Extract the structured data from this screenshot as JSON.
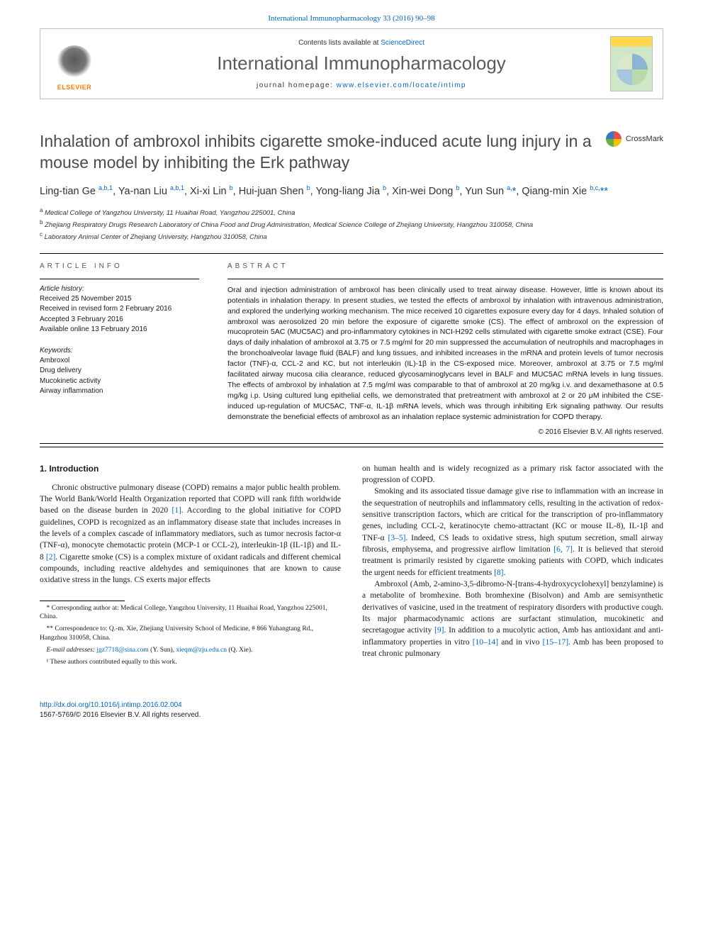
{
  "journal": {
    "topLink": "International Immunopharmacology 33 (2016) 90–98",
    "contentsPrefix": "Contents lists available at ",
    "contentsLink": "ScienceDirect",
    "title": "International Immunopharmacology",
    "homepagePrefix": "journal homepage: ",
    "homepageUrl": "www.elsevier.com/locate/intimp",
    "elsevierWord": "ELSEVIER",
    "coverTopText": "International Immunopharmacology"
  },
  "crossmark": "CrossMark",
  "article": {
    "title": "Inhalation of ambroxol inhibits cigarette smoke-induced acute lung injury in a mouse model by inhibiting the Erk pathway",
    "authorsHtml": "Ling-tian Ge <sup><a>a,b,1</a></sup>, Ya-nan Liu <sup><a>a,b,1</a></sup>, Xi-xi Lin <sup><a>b</a></sup>, Hui-juan Shen <sup><a>b</a></sup>, Yong-liang Jia <sup><a>b</a></sup>, Xin-wei Dong <sup><a>b</a></sup>, Yun Sun <sup><a>a,</a></sup><a>*</a>, Qiang-min Xie <sup><a>b,c,</a></sup><a>**</a>",
    "affiliations": [
      "Medical College of Yangzhou University, 11 Huaihai Road, Yangzhou 225001, China",
      "Zhejiang Respiratory Drugs Research Laboratory of China Food and Drug Administration, Medical Science College of Zhejiang University, Hangzhou 310058, China",
      "Laboratory Animal Center of Zhejiang University, Hangzhou 310058, China"
    ],
    "affilSup": [
      "a",
      "b",
      "c"
    ]
  },
  "info": {
    "headArticleInfo": "article info",
    "headAbstract": "abstract",
    "historyLabel": "Article history:",
    "history": [
      "Received 25 November 2015",
      "Received in revised form 2 February 2016",
      "Accepted 3 February 2016",
      "Available online 13 February 2016"
    ],
    "keywordsLabel": "Keywords:",
    "keywords": [
      "Ambroxol",
      "Drug delivery",
      "Mucokinetic activity",
      "Airway inflammation"
    ],
    "abstract": "Oral and injection administration of ambroxol has been clinically used to treat airway disease. However, little is known about its potentials in inhalation therapy. In present studies, we tested the effects of ambroxol by inhalation with intravenous administration, and explored the underlying working mechanism. The mice received 10 cigarettes exposure every day for 4 days. Inhaled solution of ambroxol was aerosolized 20 min before the exposure of cigarette smoke (CS). The effect of ambroxol on the expression of mucoprotein 5AC (MUC5AC) and pro-inflammatory cytokines in NCI-H292 cells stimulated with cigarette smoke extract (CSE). Four days of daily inhalation of ambroxol at 3.75 or 7.5 mg/ml for 20 min suppressed the accumulation of neutrophils and macrophages in the bronchoalveolar lavage fluid (BALF) and lung tissues, and inhibited increases in the mRNA and protein levels of tumor necrosis factor (TNF)-α, CCL-2 and KC, but not interleukin (IL)-1β in the CS-exposed mice. Moreover, ambroxol at 3.75 or 7.5 mg/ml facilitated airway mucosa cilia clearance, reduced glycosaminoglycans level in BALF and MUC5AC mRNA levels in lung tissues. The effects of ambroxol by inhalation at 7.5 mg/ml was comparable to that of ambroxol at 20 mg/kg i.v. and dexamethasone at 0.5 mg/kg i.p. Using cultured lung epithelial cells, we demonstrated that pretreatment with ambroxol at 2 or 20 μM inhibited the CSE-induced up-regulation of MUC5AC, TNF-α, IL-1β mRNA levels, which was through inhibiting Erk signaling pathway. Our results demonstrate the beneficial effects of ambroxol as an inhalation replace systemic administration for COPD therapy.",
    "copyright": "© 2016 Elsevier B.V. All rights reserved."
  },
  "body": {
    "h1": "1. Introduction",
    "p1a": "Chronic obstructive pulmonary disease (COPD) remains a major public health problem. The World Bank/World Health Organization reported that COPD will rank fifth worldwide based on the disease burden in 2020 ",
    "r1": "[1]",
    "p1b": ". According to the global initiative for COPD guidelines, COPD is recognized as an inflammatory disease state that includes increases in the levels of a complex cascade of inflammatory mediators, such as tumor necrosis factor-α (TNF-α), monocyte chemotactic protein (MCP-1 or CCL-2), interleukin-1β (IL-1β) and IL-8 ",
    "r2": "[2]",
    "p1c": ". Cigarette smoke (CS) is a complex mixture of oxidant radicals and different chemical compounds, including reactive aldehydes and semiquinones that are known to cause oxidative stress in the lungs. CS exerts major effects",
    "p2": "on human health and is widely recognized as a primary risk factor associated with the progression of COPD.",
    "p3a": "Smoking and its associated tissue damage give rise to inflammation with an increase in the sequestration of neutrophils and inflammatory cells, resulting in the activation of redox-sensitive transcription factors, which are critical for the transcription of pro-inflammatory genes, including CCL-2, keratinocyte chemo-attractant (KC or mouse IL-8), IL-1β and TNF-α ",
    "r35": "[3–5]",
    "p3b": ". Indeed, CS leads to oxidative stress, high sputum secretion, small airway fibrosis, emphysema, and progressive airflow limitation ",
    "r67": "[6, 7]",
    "p3c": ". It is believed that steroid treatment is primarily resisted by cigarette smoking patients with COPD, which indicates the urgent needs for efficient treatments ",
    "r8": "[8]",
    "p3d": ".",
    "p4a": "Ambroxol (Amb, 2-amino-3,5-dibromo-N-[trans-4-hydroxycyclohexyl] benzylamine) is a metabolite of bromhexine. Both bromhexine (Bisolvon) and Amb are semisynthetic derivatives of vasicine, used in the treatment of respiratory disorders with productive cough. Its major pharmacodynamic actions are surfactant stimulation, mucokinetic and secretagogue activity ",
    "r9": "[9]",
    "p4b": ". In addition to a mucolytic action, Amb has antioxidant and anti-inflammatory properties in vitro ",
    "r1014": "[10–14]",
    "p4c": " and in vivo ",
    "r1517": "[15–17]",
    "p4d": ". Amb has been proposed to treat chronic pulmonary"
  },
  "footnotes": {
    "f1": "* Corresponding author at: Medical College, Yangzhou University, 11 Huaihai Road, Yangzhou 225001, China.",
    "f2": "** Correspondence to: Q.-m. Xie, Zhejiang University School of Medicine, # 866 Yuhangtang Rd., Hangzhou 310058, China.",
    "emLabel": "E-mail addresses: ",
    "em1": "jgz7718@sina.com",
    "em1who": " (Y. Sun), ",
    "em2": "xieqm@zju.edu.cn",
    "em2who": " (Q. Xie).",
    "eq": "¹ These authors contributed equally to this work."
  },
  "doi": {
    "url": "http://dx.doi.org/10.1016/j.intimp.2016.02.004",
    "issn": "1567-5769/© 2016 Elsevier B.V. All rights reserved."
  },
  "colors": {
    "link": "#0066cc",
    "titleGrey": "#4a4a4a",
    "elsevierOrange": "#ff7a00",
    "rule": "#000000",
    "boxBorder": "#bdbdbd"
  }
}
